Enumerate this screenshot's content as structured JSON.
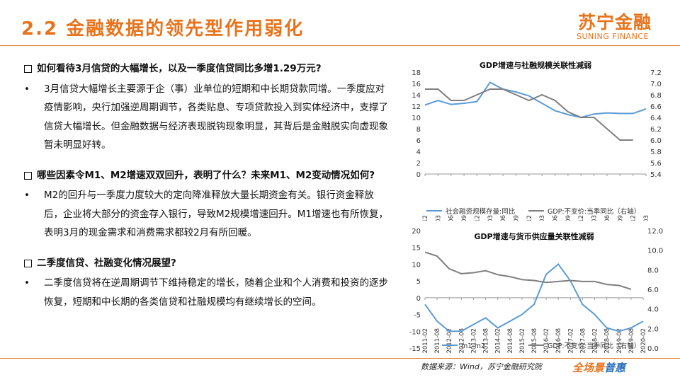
{
  "header": {
    "title": "2.2 金融数据的领先型作用弱化",
    "logo_cn": "苏宁金融",
    "logo_en": "SUNING FINANCE"
  },
  "sections": [
    {
      "question": "如何看待3月信贷的大幅增长，以及一季度信贷同比多增1.29万元?",
      "bullets": [
        "3月信贷大幅增长主要源于企（事）业单位的短期和中长期贷款同增。一季度应对疫情影响，央行加强逆周期调节，各类贴息、专项贷款投入到实体经济中，支撑了信贷大幅增长。但金融数据与经济表现脱钩现象明显，其背后是金融脱实向虚现象暂未明显好转。"
      ]
    },
    {
      "question": "哪些因素令M1、M2增速双双回升，表明了什么？未来M1、M2变动情况如何?",
      "bullets": [
        "M2的回升与一季度力度较大的定向降准释放大量长期资金有关。银行资金释放后，企业将大部分的资金存入银行，导致M2规模增速回升。M1增速也有所恢复，表明3月的现金需求和消费需求都较2月有所回暖。"
      ]
    },
    {
      "question": "二季度信贷、社融变化情况展望?",
      "bullets": [
        "二季度信贷将在逆周期调节下维持稳定的增长，随着企业和个人消费和投资的逐步恢复，短期和中长期的各类信贷和社融规模均有继续增长的空间。"
      ]
    }
  ],
  "footer": {
    "source": "数据来源：Wind，苏宁金融研究院",
    "slogan_a": "全场景",
    "slogan_b": "普惠"
  },
  "chart_data": [
    {
      "type": "line",
      "title": "GDP增速与社融规模关联性减弱",
      "x": [
        "2015-12",
        "2016-03",
        "2016-06",
        "2016-09",
        "2016-12",
        "2017-03",
        "2017-06",
        "2017-09",
        "2017-12",
        "2018-03",
        "2018-06",
        "2018-09",
        "2018-12",
        "2019-03",
        "2019-06",
        "2019-09",
        "2019-12",
        "2020-03"
      ],
      "ylim": [
        0,
        18
      ],
      "y2lim": [
        5.4,
        7.2
      ],
      "y_ticks": [
        "0",
        "2",
        "4",
        "6",
        "8",
        "10",
        "12",
        "14",
        "16",
        "18"
      ],
      "y2_ticks": [
        "5.4",
        "5.6",
        "5.8",
        "6.0",
        "6.2",
        "6.4",
        "6.6",
        "6.8",
        "7.0",
        "7.2"
      ],
      "colors": {
        "s1": "#5b9bd5",
        "s2": "#7f7f7f"
      },
      "legend_position": "bottom",
      "series": [
        {
          "name": "社会融资规模存量:同比",
          "axis": "left",
          "values": [
            12.2,
            13.0,
            12.3,
            12.5,
            12.8,
            16.2,
            15.0,
            14.5,
            13.8,
            12.5,
            11.2,
            10.5,
            10.0,
            10.6,
            10.8,
            10.7,
            10.7,
            11.5
          ]
        },
        {
          "name": "GDP:不变价:当季同比（右轴）",
          "axis": "right",
          "values": [
            6.9,
            6.9,
            6.7,
            6.7,
            6.8,
            6.9,
            6.9,
            6.8,
            6.7,
            6.8,
            6.7,
            6.5,
            6.4,
            6.4,
            6.2,
            6.0,
            6.0,
            null
          ]
        }
      ]
    },
    {
      "type": "line",
      "title": "GDP增速与货币供应量关联性减弱",
      "x": [
        "2011-02",
        "2011-08",
        "2012-02",
        "2012-08",
        "2013-02",
        "2013-08",
        "2014-02",
        "2014-08",
        "2015-02",
        "2015-08",
        "2016-02",
        "2016-08",
        "2017-02",
        "2017-08",
        "2018-02",
        "2018-08",
        "2019-02",
        "2019-08",
        "2020-02"
      ],
      "ylim": [
        -15,
        20
      ],
      "y2lim": [
        0,
        12
      ],
      "y_ticks": [
        "-15",
        "-10",
        "-5",
        "0",
        "5",
        "10",
        "15",
        "20"
      ],
      "y2_ticks": [
        "0.0",
        "2.0",
        "4.0",
        "6.0",
        "8.0",
        "10.0",
        "12.0"
      ],
      "colors": {
        "s1": "#5b9bd5",
        "s2": "#7f7f7f"
      },
      "legend_position": "bottom",
      "series": [
        {
          "name": "m1-m2",
          "axis": "left",
          "values": [
            -2,
            -7,
            -10,
            -10,
            -8,
            -6,
            -9,
            -7,
            -5,
            -2,
            7,
            10,
            5,
            -2,
            -5,
            -9,
            -10,
            -9,
            -7
          ]
        },
        {
          "name": "GDP:不变价:当季同比（右轴）",
          "axis": "right",
          "values": [
            9.8,
            9.4,
            8.1,
            7.6,
            7.7,
            7.9,
            7.5,
            7.3,
            7.0,
            6.9,
            6.7,
            6.8,
            6.9,
            6.8,
            6.8,
            6.5,
            6.4,
            6.0,
            null
          ]
        }
      ]
    }
  ]
}
